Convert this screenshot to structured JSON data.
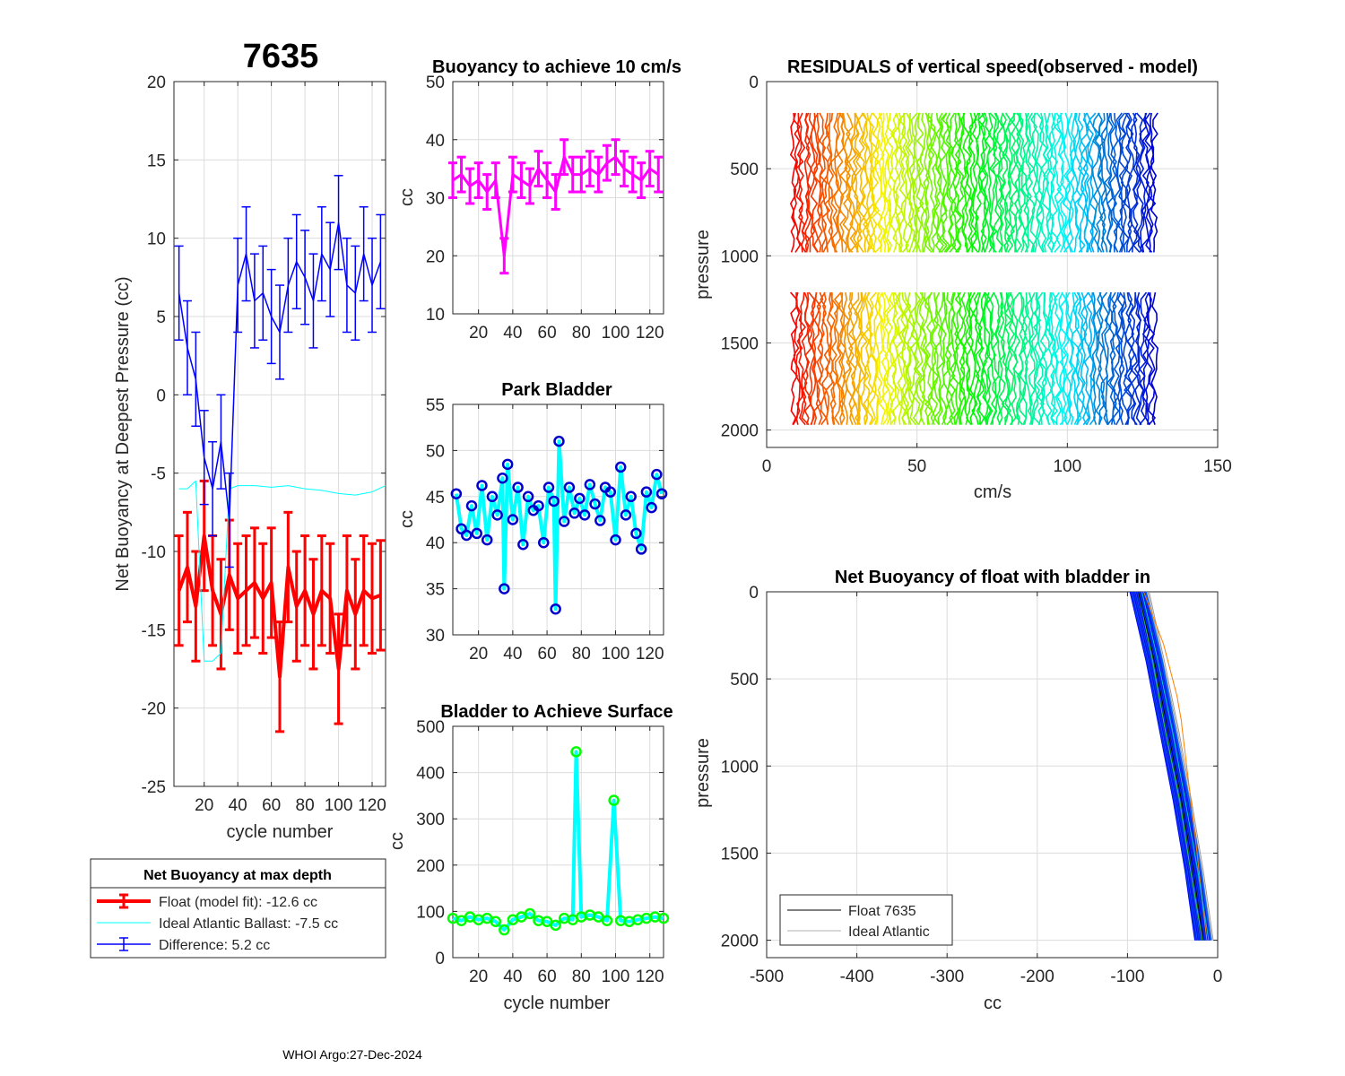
{
  "page": {
    "main_title": "7635",
    "footer": "WHOI Argo:27-Dec-2024"
  },
  "colors": {
    "red": "#ff0000",
    "blue": "#0000ff",
    "cyan": "#00ffff",
    "magenta": "#ff00ff",
    "green": "#00ff00",
    "navy": "#0000cc"
  },
  "chart_data": [
    {
      "id": "net-buoyancy",
      "type": "line",
      "title": "7635",
      "xlabel": "cycle number",
      "ylabel": "Net Buoyancy at Deepest Pressure (cc)",
      "xlim": [
        2,
        128
      ],
      "ylim": [
        -25,
        20
      ],
      "xticks": [
        20,
        40,
        60,
        80,
        100,
        120
      ],
      "yticks": [
        -25,
        -20,
        -15,
        -10,
        -5,
        0,
        5,
        10,
        15,
        20
      ],
      "series": [
        {
          "name": "Float (model fit)",
          "color": "#ff0000",
          "x": [
            5,
            10,
            15,
            20,
            25,
            30,
            35,
            40,
            45,
            50,
            55,
            60,
            65,
            70,
            75,
            80,
            85,
            90,
            95,
            100,
            105,
            110,
            115,
            120,
            125
          ],
          "y": [
            -12.5,
            -11,
            -13.5,
            -9,
            -12.5,
            -14,
            -11.5,
            -13,
            -12.5,
            -12,
            -13,
            -12,
            -18,
            -11,
            -13.5,
            -12.5,
            -14,
            -12.5,
            -13,
            -17.5,
            -12.5,
            -14,
            -12.5,
            -13,
            -12.8
          ],
          "err": 3.5
        },
        {
          "name": "Ideal Atlantic Ballast",
          "color": "#00ffff",
          "x": [
            5,
            10,
            15,
            20,
            25,
            30,
            35,
            40,
            50,
            60,
            70,
            80,
            90,
            100,
            110,
            120,
            128
          ],
          "y": [
            -6,
            -6,
            -5.5,
            -17,
            -17,
            -16.5,
            -6,
            -5.8,
            -5.8,
            -5.9,
            -5.8,
            -6,
            -6.1,
            -6.3,
            -6.4,
            -6.2,
            -5.8
          ]
        },
        {
          "name": "Difference",
          "color": "#0000ff",
          "x": [
            5,
            10,
            15,
            20,
            25,
            30,
            35,
            40,
            45,
            50,
            55,
            60,
            65,
            70,
            75,
            80,
            85,
            90,
            95,
            100,
            105,
            110,
            115,
            120,
            125
          ],
          "y": [
            6.5,
            3,
            1,
            -4,
            -6,
            -3,
            -8,
            7,
            9,
            6,
            6.5,
            5,
            4,
            7,
            8.5,
            7.5,
            6,
            9,
            8,
            11,
            7,
            6.5,
            9,
            7,
            8.5
          ],
          "err": 3
        }
      ],
      "legend": {
        "title": "Net Buoyancy at max depth",
        "entries": [
          "Float (model fit): -12.6 cc",
          "Ideal Atlantic Ballast:  -7.5 cc",
          "Difference:   5.2 cc"
        ]
      }
    },
    {
      "id": "buoyancy-10cms",
      "type": "line",
      "title": "Buoyancy to achieve 10 cm/s",
      "xlabel": "",
      "ylabel": "cc",
      "xlim": [
        5,
        128
      ],
      "ylim": [
        10,
        50
      ],
      "xticks": [
        20,
        40,
        60,
        80,
        100,
        120
      ],
      "yticks": [
        10,
        20,
        30,
        40,
        50
      ],
      "series": [
        {
          "name": "buoyancy",
          "color": "#ff00ff",
          "x": [
            5,
            10,
            15,
            20,
            25,
            30,
            35,
            40,
            45,
            50,
            55,
            60,
            65,
            70,
            75,
            80,
            85,
            90,
            95,
            100,
            105,
            110,
            115,
            120,
            125
          ],
          "y": [
            33,
            34,
            32,
            33,
            31,
            33,
            20,
            34,
            33,
            32,
            35,
            33,
            31,
            37,
            34,
            34,
            35,
            34,
            36,
            37,
            35,
            34,
            33,
            35,
            34
          ],
          "err": 3
        }
      ]
    },
    {
      "id": "park-bladder",
      "type": "line",
      "title": "Park Bladder",
      "xlabel": "",
      "ylabel": "cc",
      "xlim": [
        5,
        128
      ],
      "ylim": [
        30,
        55
      ],
      "xticks": [
        20,
        40,
        60,
        80,
        100,
        120
      ],
      "yticks": [
        30,
        35,
        40,
        45,
        50,
        55
      ],
      "series": [
        {
          "name": "park",
          "color": "#00ffff",
          "x": [
            7,
            10,
            13,
            16,
            19,
            22,
            25,
            28,
            31,
            34,
            35,
            37,
            40,
            43,
            46,
            49,
            52,
            55,
            58,
            61,
            64,
            65,
            67,
            70,
            73,
            76,
            79,
            82,
            85,
            88,
            91,
            94,
            97,
            100,
            103,
            106,
            109,
            112,
            115,
            118,
            121,
            124,
            127
          ],
          "y": [
            45.3,
            41.5,
            40.8,
            44,
            41,
            46.2,
            40.3,
            45,
            43,
            47,
            35,
            48.5,
            42.5,
            46,
            39.8,
            45,
            43.5,
            44,
            40,
            46,
            44.5,
            32.8,
            51,
            42.3,
            46,
            43.2,
            44.8,
            43,
            46.3,
            44.2,
            42.4,
            46,
            45.5,
            40.3,
            48.2,
            43,
            45,
            41,
            39.3,
            45.5,
            43.8,
            47.4,
            45.3
          ]
        }
      ]
    },
    {
      "id": "bladder-surface",
      "type": "line",
      "title": "Bladder to Achieve Surface",
      "xlabel": "cycle number",
      "ylabel": "cc",
      "xlim": [
        5,
        128
      ],
      "ylim": [
        0,
        500
      ],
      "xticks": [
        20,
        40,
        60,
        80,
        100,
        120
      ],
      "yticks": [
        0,
        100,
        200,
        300,
        400,
        500
      ],
      "series": [
        {
          "name": "surface",
          "color": "#00ffff",
          "x": [
            5,
            10,
            15,
            20,
            25,
            30,
            35,
            40,
            45,
            50,
            55,
            60,
            65,
            70,
            75,
            77,
            80,
            85,
            90,
            95,
            99,
            103,
            108,
            113,
            118,
            123,
            128
          ],
          "y": [
            85,
            80,
            88,
            82,
            85,
            78,
            60,
            82,
            88,
            95,
            80,
            78,
            70,
            85,
            82,
            445,
            88,
            92,
            88,
            80,
            340,
            80,
            78,
            82,
            85,
            88,
            85
          ]
        }
      ]
    },
    {
      "id": "residuals",
      "type": "line",
      "title": "RESIDUALS of vertical speed(observed - model)",
      "xlabel": "cm/s",
      "ylabel": "pressure",
      "xlim": [
        0,
        150
      ],
      "ylim": [
        0,
        2100
      ],
      "y_reversed": true,
      "xticks": [
        0,
        50,
        100,
        150
      ],
      "yticks": [
        0,
        500,
        1000,
        1500,
        2000
      ],
      "profile_count": 124,
      "offset_range": [
        9,
        129
      ],
      "segments": [
        [
          180,
          1000
        ],
        [
          1210,
          1990
        ]
      ]
    },
    {
      "id": "net-buoyancy-bladder-in",
      "type": "line",
      "title": "Net Buoyancy of float with bladder in",
      "xlabel": "cc",
      "ylabel": "pressure",
      "xlim": [
        -500,
        0
      ],
      "ylim": [
        0,
        2100
      ],
      "y_reversed": true,
      "xticks": [
        -500,
        -400,
        -300,
        -200,
        -100,
        0
      ],
      "yticks": [
        0,
        500,
        1000,
        1500,
        2000
      ],
      "series": [
        {
          "name": "Float 7635",
          "color": "#000000",
          "x": [
            -88,
            -70,
            -55,
            -40,
            -27,
            -16
          ],
          "y": [
            0,
            400,
            800,
            1200,
            1600,
            2000
          ]
        },
        {
          "name": "Ideal Atlantic",
          "color": "#b0b0b0",
          "x": [
            -85,
            -68,
            -52,
            -38,
            -25,
            -14
          ],
          "y": [
            0,
            400,
            800,
            1200,
            1600,
            2000
          ]
        }
      ],
      "legend": {
        "entries": [
          "Float 7635",
          "Ideal Atlantic"
        ]
      }
    }
  ]
}
